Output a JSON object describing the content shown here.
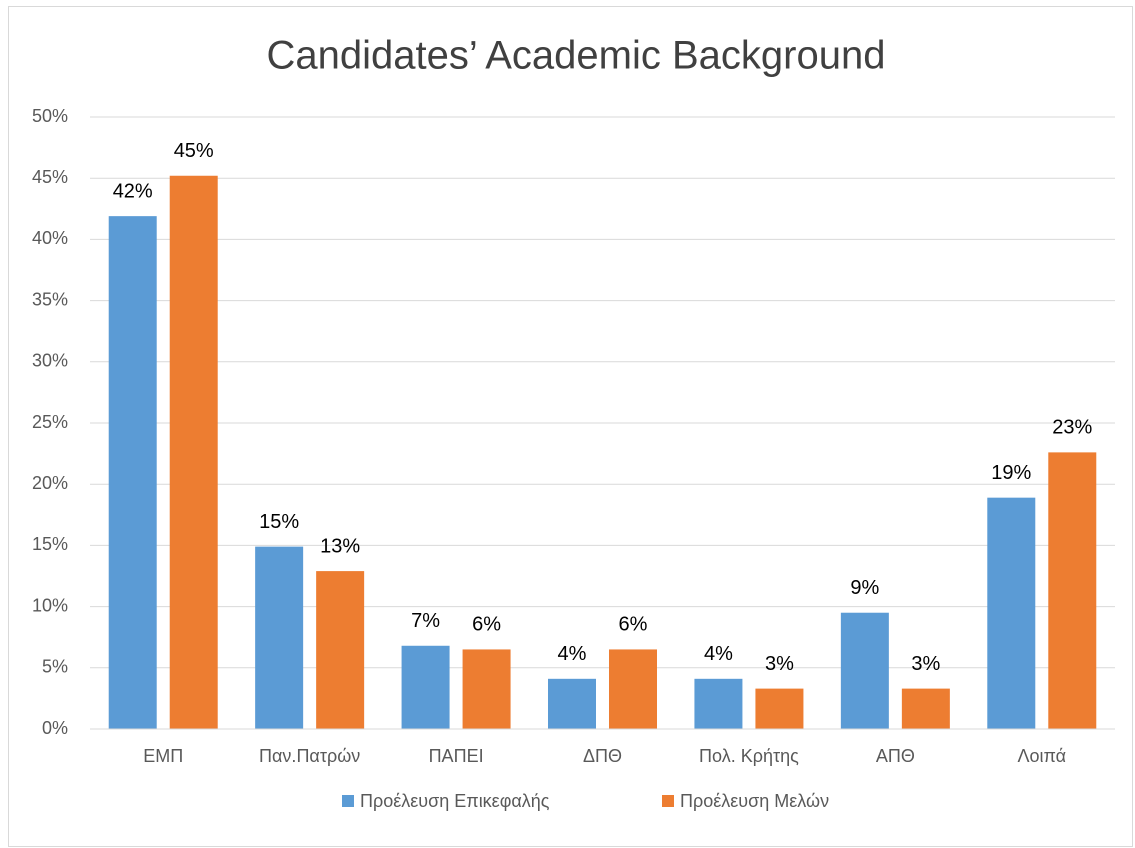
{
  "chart_data": {
    "type": "bar",
    "title": "Candidates’ Academic Background",
    "categories": [
      "ΕΜΠ",
      "Παν.Πατρών",
      "ΠΑΠΕΙ",
      "ΔΠΘ",
      "Πολ. Κρήτης",
      "ΑΠΘ",
      "Λοιπά"
    ],
    "series": [
      {
        "name": "Προέλευση Επικεφαλής",
        "color": "#5b9bd5",
        "values": [
          41.9,
          14.9,
          6.8,
          4.1,
          4.1,
          9.5,
          18.9
        ],
        "value_labels": [
          "42%",
          "15%",
          "7%",
          "4%",
          "4%",
          "9%",
          "19%"
        ]
      },
      {
        "name": "Προέλευση Μελών",
        "color": "#ed7d31",
        "values": [
          45.2,
          12.9,
          6.5,
          6.5,
          3.3,
          3.3,
          22.6
        ],
        "value_labels": [
          "45%",
          "13%",
          "6%",
          "6%",
          "3%",
          "3%",
          "23%"
        ]
      }
    ],
    "ylim": [
      0,
      50
    ],
    "yticks": [
      {
        "value": 0,
        "label": "0%"
      },
      {
        "value": 5,
        "label": "5%"
      },
      {
        "value": 10,
        "label": "10%"
      },
      {
        "value": 15,
        "label": "15%"
      },
      {
        "value": 20,
        "label": "20%"
      },
      {
        "value": 25,
        "label": "25%"
      },
      {
        "value": 30,
        "label": "30%"
      },
      {
        "value": 35,
        "label": "35%"
      },
      {
        "value": 40,
        "label": "40%"
      },
      {
        "value": 45,
        "label": "45%"
      },
      {
        "value": 50,
        "label": "50%"
      }
    ],
    "grid": true,
    "legend": "bottom"
  }
}
